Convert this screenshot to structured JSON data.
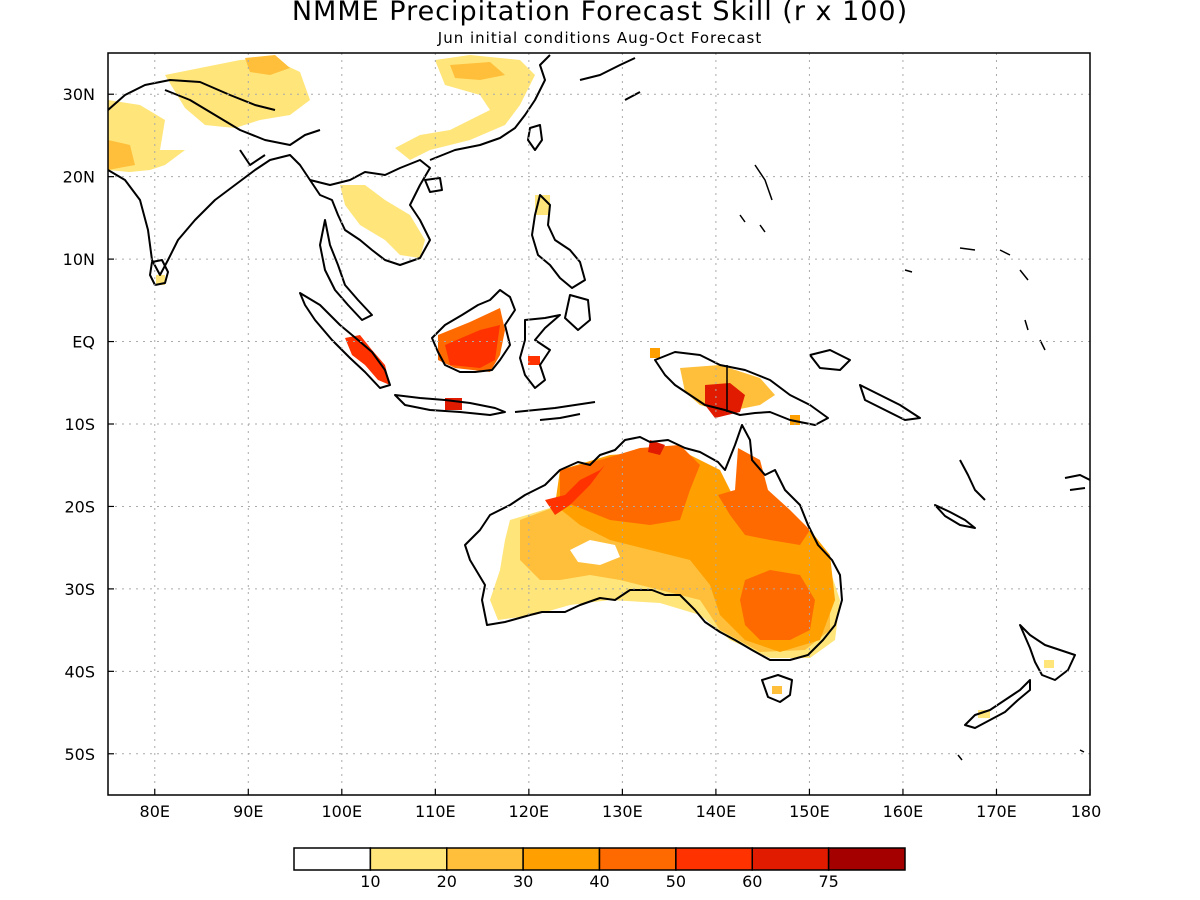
{
  "title": "NMME Precipitation Forecast Skill (r x 100)",
  "subtitle": "Jun initial conditions  Aug-Oct Forecast",
  "map": {
    "lon_range": [
      75,
      180
    ],
    "lat_range": [
      -55,
      35
    ],
    "lon_ticks": [
      {
        "value": 80,
        "label": "80E"
      },
      {
        "value": 90,
        "label": "90E"
      },
      {
        "value": 100,
        "label": "100E"
      },
      {
        "value": 110,
        "label": "110E"
      },
      {
        "value": 120,
        "label": "120E"
      },
      {
        "value": 130,
        "label": "130E"
      },
      {
        "value": 140,
        "label": "140E"
      },
      {
        "value": 150,
        "label": "150E"
      },
      {
        "value": 160,
        "label": "160E"
      },
      {
        "value": 170,
        "label": "170E"
      },
      {
        "value": 180,
        "label": "180"
      }
    ],
    "lat_ticks": [
      {
        "value": 30,
        "label": "30N"
      },
      {
        "value": 20,
        "label": "20N"
      },
      {
        "value": 10,
        "label": "10N"
      },
      {
        "value": 0,
        "label": "EQ"
      },
      {
        "value": -10,
        "label": "10S"
      },
      {
        "value": -20,
        "label": "20S"
      },
      {
        "value": -30,
        "label": "30S"
      },
      {
        "value": -40,
        "label": "40S"
      },
      {
        "value": -50,
        "label": "50S"
      }
    ],
    "grid": "dotted",
    "colorbar": {
      "colors": [
        "#ffffff",
        "#ffe57a",
        "#ffbf3a",
        "#ffa000",
        "#ff6a00",
        "#ff3200",
        "#e11b00",
        "#a50000"
      ],
      "labels": [
        "10",
        "20",
        "30",
        "40",
        "50",
        "60",
        "75"
      ]
    }
  }
}
